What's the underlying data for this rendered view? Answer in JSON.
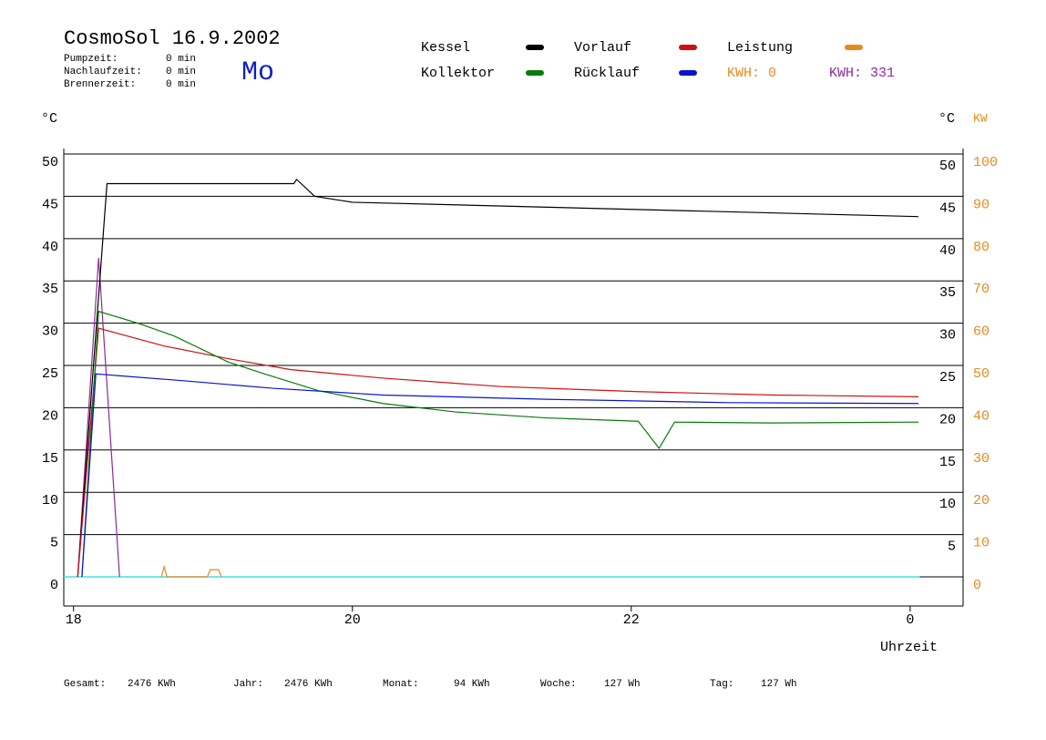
{
  "chart_data": {
    "type": "line",
    "title": "CosmoSol 16.9.2002",
    "weekday": "Mo",
    "info": [
      {
        "label": "Pumpzeit:",
        "value": "0 min"
      },
      {
        "label": "Nachlaufzeit:",
        "value": "0 min"
      },
      {
        "label": "Brennerzeit:",
        "value": "0 min"
      }
    ],
    "xlabel": "Uhrzeit",
    "ylabel": "°C",
    "y_right_label": "°C",
    "y2label": "KW",
    "xlim": [
      17.93,
      24.38
    ],
    "xticks": [
      18,
      20,
      22,
      {
        "value": 24,
        "label": "0"
      }
    ],
    "ylim": [
      -3.45,
      50.65
    ],
    "yticks": [
      0,
      5,
      10,
      15,
      20,
      25,
      30,
      35,
      40,
      45,
      50
    ],
    "y_right_ticks": [
      5,
      10,
      15,
      20,
      25,
      30,
      35,
      40,
      45,
      50
    ],
    "y2lim": [
      -6.9,
      101.3
    ],
    "y2ticks": [
      0,
      10,
      20,
      30,
      40,
      50,
      60,
      70,
      80,
      90,
      100
    ],
    "grid": true,
    "series": [
      {
        "name": "Kessel",
        "color": "#000000",
        "x": [
          18.03,
          18.24,
          19.58,
          19.6,
          19.73,
          20.0,
          24.06
        ],
        "values": [
          0,
          46.5,
          46.5,
          47,
          45,
          44.3,
          42.6
        ]
      },
      {
        "name": "Vorlauf",
        "color": "#d01010",
        "x": [
          18.03,
          18.18,
          18.65,
          19.11,
          19.56,
          20.22,
          21.07,
          22.05,
          23.03,
          24.06
        ],
        "values": [
          0,
          29.4,
          27.3,
          25.8,
          24.5,
          23.5,
          22.5,
          21.9,
          21.5,
          21.3
        ]
      },
      {
        "name": "Leistung",
        "color": "#e8891e",
        "axis": "y2",
        "x": [
          18.63,
          18.65,
          18.67,
          18.96,
          18.98,
          19.04,
          19.06
        ],
        "values": [
          0,
          2.4,
          0,
          0,
          1.7,
          1.7,
          0
        ]
      },
      {
        "name": "Kollektor",
        "color": "#0a7a0a",
        "x": [
          18.06,
          18.18,
          18.46,
          18.72,
          19.11,
          19.37,
          19.76,
          20.22,
          20.74,
          21.39,
          22.05,
          22.2,
          22.31,
          23.0,
          24.06
        ],
        "values": [
          0,
          31.4,
          30,
          28.5,
          25.4,
          24,
          22,
          20.5,
          19.5,
          18.8,
          18.4,
          15.2,
          18.3,
          18.2,
          18.3
        ]
      },
      {
        "name": "Rücklauf",
        "color": "#0a14c8",
        "x": [
          18.06,
          18.16,
          18.78,
          19.43,
          20.22,
          21.39,
          22.7,
          24.06
        ],
        "values": [
          0,
          24,
          23.2,
          22.3,
          21.5,
          21.0,
          20.6,
          20.5
        ]
      }
    ],
    "purple_line": {
      "color": "#8b2a9b",
      "x": [
        18.03,
        18.18,
        18.33
      ],
      "values": [
        0,
        37.7,
        0
      ]
    },
    "baseline": {
      "color": "#40e0e0",
      "value": 0,
      "x_end": 24.07
    },
    "kwh_labels": [
      {
        "text": "KWH: 0",
        "color": "#e8891e"
      },
      {
        "text": "KWH: 331",
        "color": "#8b2a9b"
      }
    ],
    "totals": [
      {
        "label": "Gesamt:",
        "value": "2476 KWh"
      },
      {
        "label": "Jahr:",
        "value": "2476 KWh"
      },
      {
        "label": "Monat:",
        "value": "94 KWh"
      },
      {
        "label": "Woche:",
        "value": "127 Wh"
      },
      {
        "label": "Tag:",
        "value": "127 Wh"
      }
    ]
  }
}
